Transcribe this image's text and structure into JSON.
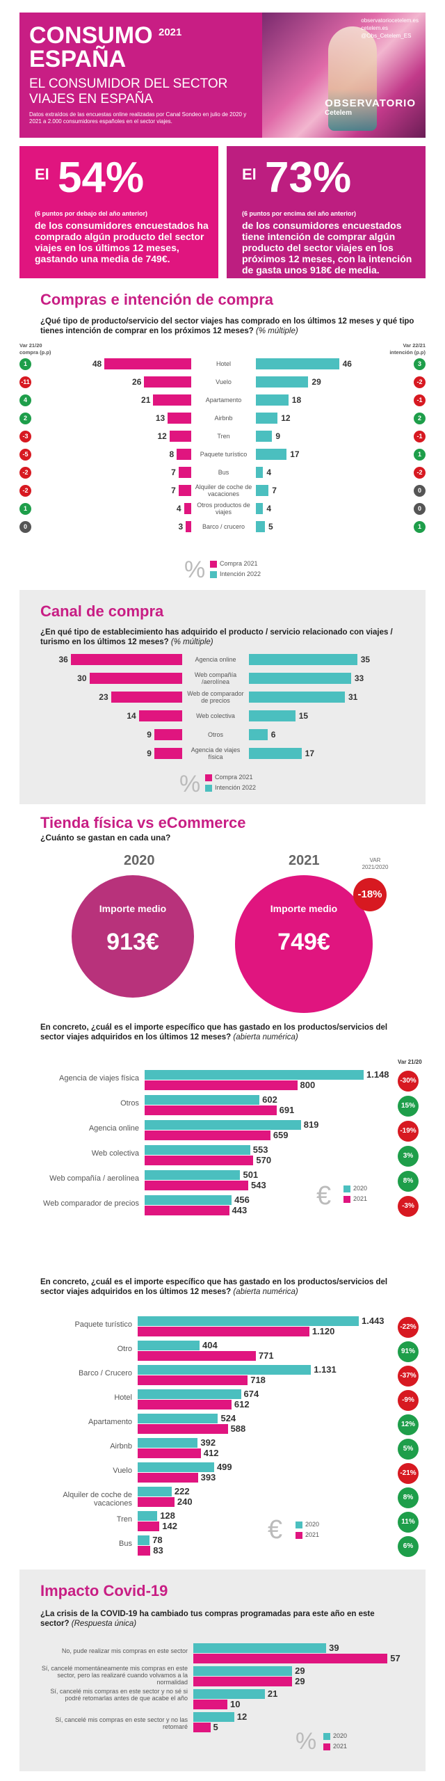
{
  "header": {
    "title1": "CONSUMO",
    "year": "2021",
    "title2": "ESPAÑA",
    "subtitle1": "EL CONSUMIDOR DEL SECTOR",
    "subtitle2": "VIAJES EN ESPAÑA",
    "desc": "Datos extraídos de las encuestas online realizadas por Canal Sondeo en julio de 2020 y 2021 a 2.000 consumidores españoles en el sector viajes.",
    "social1": "observatoriocetelem.es",
    "social2": "cetelem.es",
    "social3": "@Obs_Cetelem_ES",
    "brand": "OBSERVATORIO",
    "brand_sub": "Cetelem"
  },
  "stats": [
    {
      "el": "El",
      "pct": "54%",
      "sub": "(6 puntos por debajo del año anterior)",
      "desc": "de los consumidores encuestados ha comprado algún producto del sector viajes en los últimos 12 meses, gastando una media de 749€."
    },
    {
      "el": "El",
      "pct": "73%",
      "sub": "(6 puntos por encima del año anterior)",
      "desc": "de los consumidores encuestados tiene intención de comprar algún producto del sector viajes en los próximos 12 meses, con la intención de gasta unos 918€ de media."
    }
  ],
  "compras": {
    "title": "Compras e intención de compra",
    "question": "¿Qué tipo de producto/servicio del sector viajes has comprado en los últimos 12 meses y qué tipo tienes intención de comprar en los próximos 12 meses?",
    "note": "(% múltiple)",
    "var_left": "Var 21/20 compra (p.p)",
    "var_right": "Var 22/21 intención (p.p)",
    "legend1": "Compra 2021",
    "legend2": "Intención 2022",
    "rows": [
      {
        "label": "Hotel",
        "compra": 48,
        "intencion": 46,
        "var_c": "1",
        "var_i": "3",
        "col_c": "g",
        "col_i": "g"
      },
      {
        "label": "Vuelo",
        "compra": 26,
        "intencion": 29,
        "var_c": "-11",
        "var_i": "-2",
        "col_c": "r",
        "col_i": "r"
      },
      {
        "label": "Apartamento",
        "compra": 21,
        "intencion": 18,
        "var_c": "4",
        "var_i": "-1",
        "col_c": "g",
        "col_i": "r"
      },
      {
        "label": "Airbnb",
        "compra": 13,
        "intencion": 12,
        "var_c": "2",
        "var_i": "2",
        "col_c": "g",
        "col_i": "g"
      },
      {
        "label": "Tren",
        "compra": 12,
        "intencion": 9,
        "var_c": "-3",
        "var_i": "-1",
        "col_c": "r",
        "col_i": "r"
      },
      {
        "label": "Paquete turístico",
        "compra": 8,
        "intencion": 17,
        "var_c": "-5",
        "var_i": "1",
        "col_c": "r",
        "col_i": "g"
      },
      {
        "label": "Bus",
        "compra": 7,
        "intencion": 4,
        "var_c": "-2",
        "var_i": "-2",
        "col_c": "r",
        "col_i": "r"
      },
      {
        "label": "Alquiler de coche de vacaciones",
        "compra": 7,
        "intencion": 7,
        "var_c": "-2",
        "var_i": "0",
        "col_c": "r",
        "col_i": "k"
      },
      {
        "label": "Otros productos de viajes",
        "compra": 4,
        "intencion": 4,
        "var_c": "1",
        "var_i": "0",
        "col_c": "g",
        "col_i": "k"
      },
      {
        "label": "Barco / crucero",
        "compra": 3,
        "intencion": 5,
        "var_c": "0",
        "var_i": "1",
        "col_c": "k",
        "col_i": "g"
      }
    ]
  },
  "canal": {
    "title": "Canal de compra",
    "question": "¿En qué tipo de establecimiento has adquirido el producto / servicio relacionado con viajes / turismo en los últimos 12 meses?",
    "note": "(% múltiple)",
    "legend1": "Compra 2021",
    "legend2": "Intención 2022",
    "rows": [
      {
        "label": "Agencia online",
        "compra": 36,
        "intencion": 35
      },
      {
        "label": "Web compañía /aerolínea",
        "compra": 30,
        "intencion": 33
      },
      {
        "label": "Web de comparador de precios",
        "compra": 23,
        "intencion": 31
      },
      {
        "label": "Web colectiva",
        "compra": 14,
        "intencion": 15
      },
      {
        "label": "Otros",
        "compra": 9,
        "intencion": 6
      },
      {
        "label": "Agencia de viajes física",
        "compra": 9,
        "intencion": 17
      }
    ]
  },
  "tienda": {
    "title": "Tienda física vs eCommerce",
    "question": "¿Cuánto se gastan en cada una?",
    "year1": "2020",
    "year2": "2021",
    "label": "Importe medio",
    "val1": "913€",
    "val2": "749€",
    "var_label": "VAR 2021/2020",
    "var": "-18%"
  },
  "chart1": {
    "question": "En concreto, ¿cuál es el importe específico que has gastado en los productos/servicios del sector viajes adquiridos en los últimos 12 meses?",
    "note": "(abierta numérica)",
    "var_header": "Var 21/20",
    "legend1": "2020",
    "legend2": "2021",
    "rows": [
      {
        "label": "Agencia de viajes física",
        "v2020": 1148,
        "v2021": 800,
        "t2020": "1.148",
        "t2021": "800",
        "var": "-30%",
        "col": "r"
      },
      {
        "label": "Otros",
        "v2020": 602,
        "v2021": 691,
        "t2020": "602",
        "t2021": "691",
        "var": "15%",
        "col": "g"
      },
      {
        "label": "Agencia online",
        "v2020": 819,
        "v2021": 659,
        "t2020": "819",
        "t2021": "659",
        "var": "-19%",
        "col": "r"
      },
      {
        "label": "Web colectiva",
        "v2020": 553,
        "v2021": 570,
        "t2020": "553",
        "t2021": "570",
        "var": "3%",
        "col": "g"
      },
      {
        "label": "Web compañía / aerolínea",
        "v2020": 501,
        "v2021": 543,
        "t2020": "501",
        "t2021": "543",
        "var": "8%",
        "col": "g"
      },
      {
        "label": "Web comparador de precios",
        "v2020": 456,
        "v2021": 443,
        "t2020": "456",
        "t2021": "443",
        "var": "-3%",
        "col": "r"
      }
    ]
  },
  "chart2": {
    "question": "En concreto, ¿cuál es el importe específico que has gastado en los productos/servicios del sector viajes adquiridos en los últimos 12 meses?",
    "note": "(abierta numérica)",
    "legend1": "2020",
    "legend2": "2021",
    "rows": [
      {
        "label": "Paquete turístico",
        "v2020": 1443,
        "v2021": 1120,
        "t2020": "1.443",
        "t2021": "1.120",
        "var": "-22%",
        "col": "r"
      },
      {
        "label": "Otro",
        "v2020": 404,
        "v2021": 771,
        "t2020": "404",
        "t2021": "771",
        "var": "91%",
        "col": "g"
      },
      {
        "label": "Barco / Crucero",
        "v2020": 1131,
        "v2021": 718,
        "t2020": "1.131",
        "t2021": "718",
        "var": "-37%",
        "col": "r"
      },
      {
        "label": "Hotel",
        "v2020": 674,
        "v2021": 612,
        "t2020": "674",
        "t2021": "612",
        "var": "-9%",
        "col": "r"
      },
      {
        "label": "Apartamento",
        "v2020": 524,
        "v2021": 588,
        "t2020": "524",
        "t2021": "588",
        "var": "12%",
        "col": "g"
      },
      {
        "label": "Airbnb",
        "v2020": 392,
        "v2021": 412,
        "t2020": "392",
        "t2021": "412",
        "var": "5%",
        "col": "g"
      },
      {
        "label": "Vuelo",
        "v2020": 499,
        "v2021": 393,
        "t2020": "499",
        "t2021": "393",
        "var": "-21%",
        "col": "r"
      },
      {
        "label": "Alquiler de coche de vacaciones",
        "v2020": 222,
        "v2021": 240,
        "t2020": "222",
        "t2021": "240",
        "var": "8%",
        "col": "g"
      },
      {
        "label": "Tren",
        "v2020": 128,
        "v2021": 142,
        "t2020": "128",
        "t2021": "142",
        "var": "11%",
        "col": "g"
      },
      {
        "label": "Bus",
        "v2020": 78,
        "v2021": 83,
        "t2020": "78",
        "t2021": "83",
        "var": "6%",
        "col": "g"
      }
    ]
  },
  "covid": {
    "title": "Impacto Covid-19",
    "question": "¿La crisis de la COVID-19 ha cambiado tus compras programadas para este año en este sector?",
    "note": "(Respuesta única)",
    "legend1": "2020",
    "legend2": "2021",
    "rows": [
      {
        "label": "No, pude realizar mis compras en este sector",
        "v2020": 39,
        "v2021": 57
      },
      {
        "label": "Sí, cancelé momentáneamente mis compras en este sector, pero las realizaré cuando volvamos a la normalidad",
        "v2020": 29,
        "v2021": 29
      },
      {
        "label": "Sí, cancelé mis compras en este sector y no sé si podré retomarlas antes de que acabe el año",
        "v2020": 21,
        "v2021": 10
      },
      {
        "label": "Sí, cancelé mis compras en este sector y no las retomaré",
        "v2020": 12,
        "v2021": 5
      }
    ]
  },
  "colors": {
    "magenta": "#e0157f",
    "teal": "#4bbfbf",
    "green": "#1e9e4a",
    "red": "#d71921"
  },
  "chart_data": [
    {
      "type": "bar",
      "title": "Compras e intención de compra",
      "categories": [
        "Hotel",
        "Vuelo",
        "Apartamento",
        "Airbnb",
        "Tren",
        "Paquete turístico",
        "Bus",
        "Alquiler de coche de vacaciones",
        "Otros productos de viajes",
        "Barco / crucero"
      ],
      "series": [
        {
          "name": "Compra 2021",
          "values": [
            48,
            26,
            21,
            13,
            12,
            8,
            7,
            7,
            4,
            3
          ]
        },
        {
          "name": "Intención 2022",
          "values": [
            46,
            29,
            18,
            12,
            9,
            17,
            4,
            7,
            4,
            5
          ]
        }
      ]
    },
    {
      "type": "bar",
      "title": "Canal de compra",
      "categories": [
        "Agencia online",
        "Web compañía /aerolínea",
        "Web de comparador de precios",
        "Web colectiva",
        "Otros",
        "Agencia de viajes física"
      ],
      "series": [
        {
          "name": "Compra 2021",
          "values": [
            36,
            30,
            23,
            14,
            9,
            9
          ]
        },
        {
          "name": "Intención 2022",
          "values": [
            35,
            33,
            31,
            15,
            6,
            17
          ]
        }
      ]
    },
    {
      "type": "bar",
      "categories": [
        "Agencia de viajes física",
        "Otros",
        "Agencia online",
        "Web colectiva",
        "Web compañía / aerolínea",
        "Web comparador de precios"
      ],
      "series": [
        {
          "name": "2020",
          "values": [
            1148,
            602,
            819,
            553,
            501,
            456
          ]
        },
        {
          "name": "2021",
          "values": [
            800,
            691,
            659,
            570,
            543,
            443
          ]
        }
      ]
    },
    {
      "type": "bar",
      "categories": [
        "Paquete turístico",
        "Otro",
        "Barco / Crucero",
        "Hotel",
        "Apartamento",
        "Airbnb",
        "Vuelo",
        "Alquiler de coche de vacaciones",
        "Tren",
        "Bus"
      ],
      "series": [
        {
          "name": "2020",
          "values": [
            1443,
            404,
            1131,
            674,
            524,
            392,
            499,
            222,
            128,
            78
          ]
        },
        {
          "name": "2021",
          "values": [
            1120,
            771,
            718,
            612,
            588,
            412,
            393,
            240,
            142,
            83
          ]
        }
      ]
    },
    {
      "type": "bar",
      "title": "Impacto Covid-19",
      "categories": [
        "No, pude realizar mis compras en este sector",
        "Sí, cancelé momentáneamente mis compras en este sector, pero las realizaré cuando volvamos a la normalidad",
        "Sí, cancelé mis compras en este sector y no sé si podré retomarlas antes de que acabe el año",
        "Sí, cancelé mis compras en este sector y no las retomaré"
      ],
      "series": [
        {
          "name": "2020",
          "values": [
            39,
            29,
            21,
            12
          ]
        },
        {
          "name": "2021",
          "values": [
            57,
            29,
            10,
            5
          ]
        }
      ]
    }
  ]
}
